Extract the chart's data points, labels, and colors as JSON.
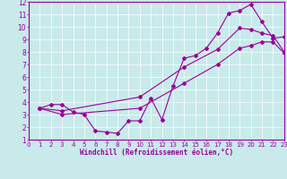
{
  "xlabel": "Windchill (Refroidissement éolien,°C)",
  "xlim": [
    0,
    23
  ],
  "ylim": [
    1,
    12
  ],
  "xticks": [
    0,
    1,
    2,
    3,
    4,
    5,
    6,
    7,
    8,
    9,
    10,
    11,
    12,
    13,
    14,
    15,
    16,
    17,
    18,
    19,
    20,
    21,
    22,
    23
  ],
  "yticks": [
    1,
    2,
    3,
    4,
    5,
    6,
    7,
    8,
    9,
    10,
    11,
    12
  ],
  "bg_color": "#c8eaea",
  "line_color": "#990099",
  "grid_color": "#aacccc",
  "line1_x": [
    1,
    2,
    3,
    4,
    5,
    6,
    7,
    8,
    9,
    10,
    11,
    12,
    13,
    14,
    15,
    16,
    17,
    18,
    19,
    20,
    21,
    22,
    23
  ],
  "line1_y": [
    3.5,
    3.8,
    3.8,
    3.2,
    3.0,
    1.7,
    1.6,
    1.5,
    2.5,
    2.5,
    4.3,
    2.6,
    5.3,
    7.5,
    7.7,
    8.3,
    9.5,
    11.1,
    11.3,
    11.8,
    10.4,
    9.1,
    9.2
  ],
  "line2_x": [
    1,
    3,
    10,
    14,
    17,
    19,
    20,
    21,
    22,
    23
  ],
  "line2_y": [
    3.5,
    3.3,
    4.4,
    6.8,
    8.2,
    9.9,
    9.8,
    9.5,
    9.3,
    8.0
  ],
  "line3_x": [
    1,
    3,
    10,
    14,
    17,
    19,
    20,
    21,
    22,
    23
  ],
  "line3_y": [
    3.5,
    3.0,
    3.5,
    5.5,
    7.0,
    8.3,
    8.5,
    8.8,
    8.8,
    7.9
  ]
}
